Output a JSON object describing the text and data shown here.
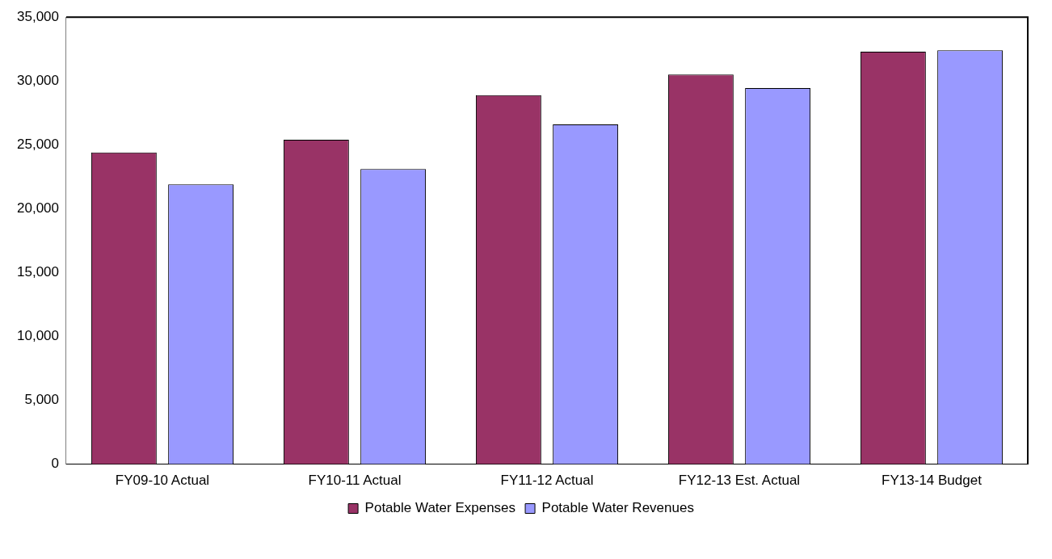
{
  "chart_data": {
    "type": "bar",
    "categories": [
      "FY09-10 Actual",
      "FY10-11 Actual",
      "FY11-12 Actual",
      "FY12-13 Est. Actual",
      "FY13-14 Budget"
    ],
    "series": [
      {
        "name": "Potable Water Expenses",
        "color": "#993366",
        "values": [
          24400,
          25400,
          28900,
          30500,
          32300
        ]
      },
      {
        "name": "Potable Water Revenues",
        "color": "#9999ff",
        "values": [
          21900,
          23100,
          26600,
          29450,
          32400
        ]
      }
    ],
    "ylim": [
      0,
      35000
    ],
    "yticks": [
      {
        "value": 0,
        "label": "0"
      },
      {
        "value": 5000,
        "label": "5,000"
      },
      {
        "value": 10000,
        "label": "10,000"
      },
      {
        "value": 15000,
        "label": "15,000"
      },
      {
        "value": 20000,
        "label": "20,000"
      },
      {
        "value": 25000,
        "label": "25,000"
      },
      {
        "value": 30000,
        "label": "30,000"
      },
      {
        "value": 35000,
        "label": "35,000"
      }
    ],
    "grid": false,
    "legend": "bottom"
  }
}
